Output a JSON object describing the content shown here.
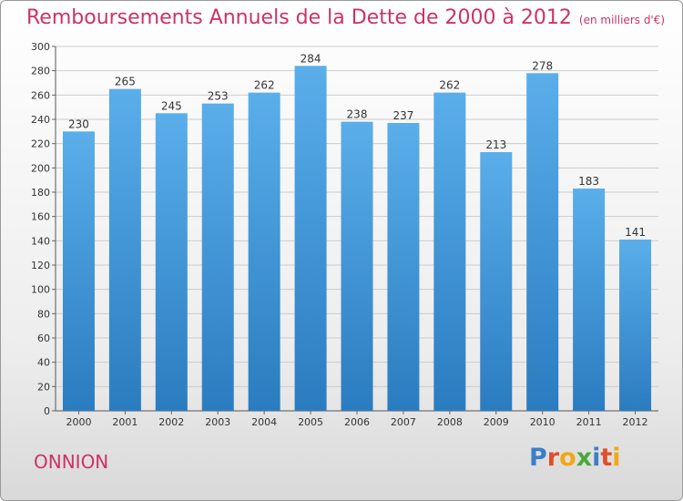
{
  "header": {
    "title": "Remboursements Annuels de la Dette de 2000 à 2012",
    "unit": "(en milliers d'€)"
  },
  "footer": {
    "town": "ONNION",
    "logo": "Proxiti"
  },
  "colors": {
    "title": "#cc3366",
    "bar_top": "#5aaeea",
    "bar_bottom": "#2a7cc0",
    "grid": "#cccccc",
    "logo_letters": [
      "#3c7ec8",
      "#e04e2a",
      "#f2a814",
      "#4aa83c",
      "#3c7ec8",
      "#e04e2a",
      "#f2a814"
    ]
  },
  "chart_data": {
    "type": "bar",
    "title": "Remboursements Annuels de la Dette de 2000 à 2012",
    "xlabel": "",
    "ylabel": "(en milliers d'€)",
    "categories": [
      "2000",
      "2001",
      "2002",
      "2003",
      "2004",
      "2005",
      "2006",
      "2007",
      "2008",
      "2009",
      "2010",
      "2011",
      "2012"
    ],
    "values": [
      230,
      265,
      245,
      253,
      262,
      284,
      238,
      237,
      262,
      213,
      278,
      183,
      141
    ],
    "ylim": [
      0,
      300
    ],
    "yticks": [
      0,
      20,
      40,
      60,
      80,
      100,
      120,
      140,
      160,
      180,
      200,
      220,
      240,
      260,
      280,
      300
    ],
    "grid": true
  }
}
